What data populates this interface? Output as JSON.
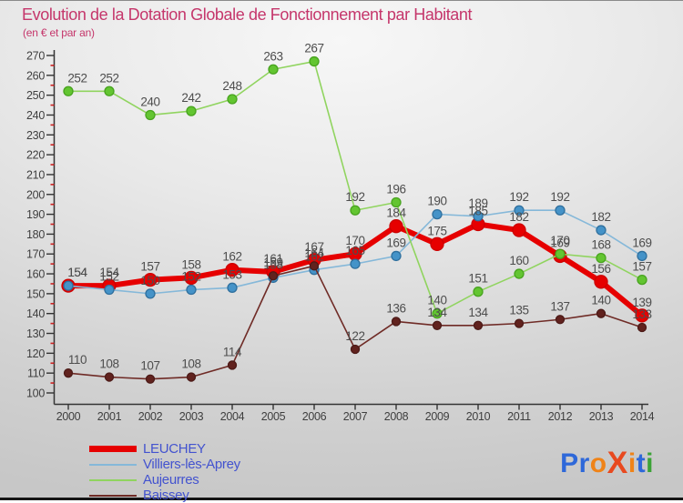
{
  "title": "Evolution de la Dotation Globale de Fonctionnement par Habitant",
  "subtitle": "(en € et par an)",
  "chart_data": {
    "type": "line",
    "title": "Evolution de la Dotation Globale de Fonctionnement par Habitant",
    "subtitle": "(en € et par an)",
    "x": [
      2000,
      2001,
      2002,
      2003,
      2004,
      2005,
      2006,
      2007,
      2008,
      2009,
      2010,
      2011,
      2012,
      2013,
      2014
    ],
    "xlabel": "",
    "ylabel": "",
    "ylim": [
      100,
      270
    ],
    "ytick_step": 10,
    "grid": false,
    "legend_position": "bottom-left",
    "axis_color": "#333333",
    "tick_label_color": "#3f3f3f",
    "minor_tick_color": "#cc2222",
    "point_label_color": "#4d4d4d",
    "series": [
      {
        "name": "LEUCHEY",
        "values": [
          154,
          154,
          157,
          158,
          162,
          161,
          167,
          170,
          184,
          175,
          185,
          182,
          169,
          156,
          139
        ],
        "line_color": "#e60000",
        "dot_color": "#e60000",
        "dot_stroke": "#cc0000",
        "line_width": 6,
        "dot_radius": 7
      },
      {
        "name": "Villiers-lès-Aprey",
        "values": [
          154,
          152,
          150,
          152,
          153,
          158,
          162,
          165,
          169,
          190,
          189,
          192,
          192,
          182,
          169
        ],
        "line_color": "#85b8d9",
        "dot_color": "#4593c8",
        "dot_stroke": "#2f6f9d",
        "line_width": 1.6,
        "dot_radius": 5
      },
      {
        "name": "Aujeurres",
        "values": [
          252,
          252,
          240,
          242,
          248,
          263,
          267,
          192,
          196,
          140,
          151,
          160,
          170,
          168,
          157
        ],
        "line_color": "#90d45f",
        "dot_color": "#63c531",
        "dot_stroke": "#47a31e",
        "line_width": 1.6,
        "dot_radius": 5
      },
      {
        "name": "Baissey",
        "values": [
          110,
          108,
          107,
          108,
          114,
          159,
          164,
          122,
          136,
          134,
          134,
          135,
          137,
          140,
          133
        ],
        "line_color": "#6f2b26",
        "dot_color": "#61221e",
        "dot_stroke": "#4c1a17",
        "line_width": 1.6,
        "dot_radius": 4.5
      }
    ]
  },
  "logo": {
    "letters": [
      {
        "t": "P",
        "c": "#2e68d9"
      },
      {
        "t": "r",
        "c": "#2e68d9"
      },
      {
        "t": "o",
        "c": "#ef8318"
      },
      {
        "t": "X",
        "c": "#e8491f",
        "x": true
      },
      {
        "t": "i",
        "c": "#ef8318"
      },
      {
        "t": "t",
        "c": "#2e68d9"
      },
      {
        "t": "i",
        "c": "#3ba336"
      }
    ]
  }
}
